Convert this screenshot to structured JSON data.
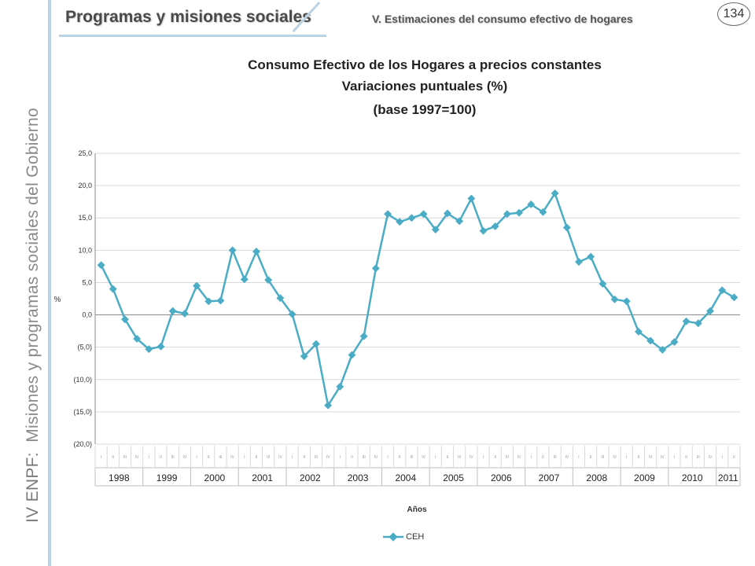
{
  "header": {
    "title": "Programas y misiones sociales",
    "subtitle": "V. Estimaciones del consumo efectivo de hogares",
    "page_number": "134"
  },
  "sidebar": {
    "prefix": "IV ENPF:",
    "text": "Misiones y programas sociales del Gobierno"
  },
  "colors": {
    "accent": "#b9d3e3",
    "series": "#4bacc6"
  },
  "chart_data": {
    "type": "line",
    "title": "Consumo Efectivo de los Hogares a precios constantes",
    "subtitle": "Variaciones puntuales (%)",
    "base_note": "(base 1997=100)",
    "xlabel": "Años",
    "ylabel": "%",
    "ylim": [
      -20,
      25
    ],
    "yticks": [
      25,
      20,
      15,
      10,
      5,
      0,
      -5,
      -10,
      -15,
      -20
    ],
    "ytick_labels": [
      "25,0",
      "20,0",
      "15,0",
      "10,0",
      "5,0",
      "0,0",
      "(5,0)",
      "(10,0)",
      "(15,0)",
      "(20,0)"
    ],
    "quarter_labels": [
      "I",
      "II",
      "III",
      "IV"
    ],
    "years": [
      "1998",
      "1999",
      "2000",
      "2001",
      "2002",
      "2003",
      "2004",
      "2005",
      "2006",
      "2007",
      "2008",
      "2009",
      "2010",
      "2011"
    ],
    "quarters_last_year": 2,
    "grid": true,
    "legend": "bottom",
    "series": [
      {
        "name": "CEH",
        "values": [
          7.7,
          4.0,
          -0.7,
          -3.7,
          -5.3,
          -4.9,
          0.6,
          0.2,
          4.5,
          2.1,
          2.2,
          10.0,
          5.5,
          9.8,
          5.4,
          2.6,
          0.1,
          -6.4,
          -4.5,
          -14.0,
          -11.1,
          -6.2,
          -3.3,
          7.2,
          15.6,
          14.4,
          15.0,
          15.6,
          13.2,
          15.7,
          14.5,
          18.0,
          13.0,
          13.7,
          15.6,
          15.8,
          17.1,
          15.9,
          18.8,
          13.5,
          8.2,
          9.0,
          4.8,
          2.4,
          2.1,
          -2.6,
          -4.0,
          -5.4,
          -4.2,
          -1.0,
          -1.3,
          0.6,
          3.8,
          2.7
        ]
      }
    ]
  }
}
